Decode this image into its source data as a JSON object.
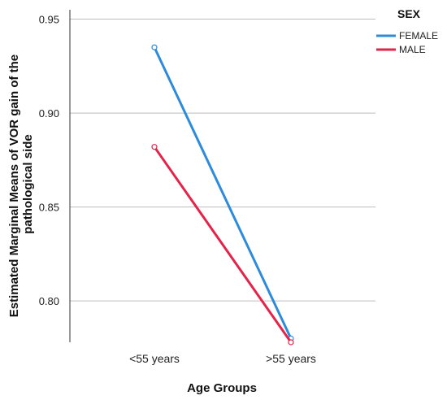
{
  "chart_data": {
    "type": "line",
    "xlabel": "Age Groups",
    "ylabel": "Estimated Marginal Means of VOR gain of the pathological side",
    "categories": [
      "<55 years",
      ">55 years"
    ],
    "yticks": [
      "0.80",
      "0.85",
      "0.90",
      "0.95"
    ],
    "ytick_values": [
      0.8,
      0.85,
      0.9,
      0.95
    ],
    "ylim": [
      0.778,
      0.955
    ],
    "grid": true,
    "legend": {
      "title": "SEX",
      "placement": "top-right"
    },
    "series": [
      {
        "name": "FEMALE",
        "values": [
          0.935,
          0.78
        ],
        "color": "#2e8bda"
      },
      {
        "name": "MALE",
        "values": [
          0.882,
          0.778
        ],
        "color": "#e3234a"
      }
    ]
  }
}
